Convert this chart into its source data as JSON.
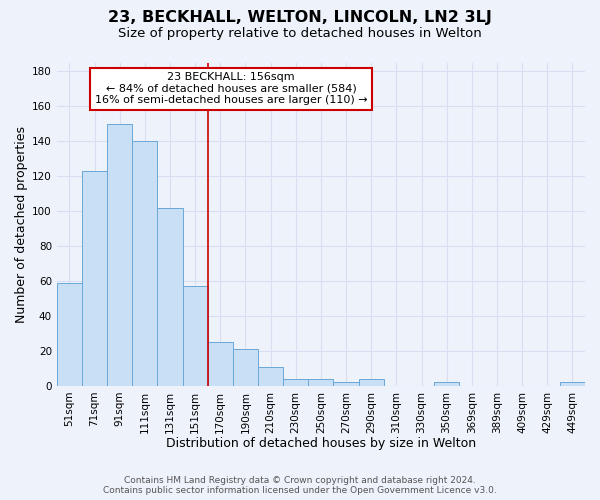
{
  "title": "23, BECKHALL, WELTON, LINCOLN, LN2 3LJ",
  "subtitle": "Size of property relative to detached houses in Welton",
  "xlabel": "Distribution of detached houses by size in Welton",
  "ylabel": "Number of detached properties",
  "footer_line1": "Contains HM Land Registry data © Crown copyright and database right 2024.",
  "footer_line2": "Contains public sector information licensed under the Open Government Licence v3.0.",
  "bar_labels": [
    "51sqm",
    "71sqm",
    "91sqm",
    "111sqm",
    "131sqm",
    "151sqm",
    "170sqm",
    "190sqm",
    "210sqm",
    "230sqm",
    "250sqm",
    "270sqm",
    "290sqm",
    "310sqm",
    "330sqm",
    "350sqm",
    "369sqm",
    "389sqm",
    "409sqm",
    "429sqm",
    "449sqm"
  ],
  "bar_values": [
    59,
    123,
    150,
    140,
    102,
    57,
    25,
    21,
    11,
    4,
    4,
    2,
    4,
    0,
    0,
    2,
    0,
    0,
    0,
    0,
    2
  ],
  "bar_color": "#c8dff5",
  "bar_edge_color": "#6aa8d8",
  "vline_x_index": 5.5,
  "vline_color": "#cc0000",
  "annotation_title": "23 BECKHALL: 156sqm",
  "annotation_line1": "← 84% of detached houses are smaller (584)",
  "annotation_line2": "16% of semi-detached houses are larger (110) →",
  "annotation_box_color": "#ffffff",
  "annotation_box_edge": "#cc0000",
  "ylim": [
    0,
    185
  ],
  "yticks": [
    0,
    20,
    40,
    60,
    80,
    100,
    120,
    140,
    160,
    180
  ],
  "background_color": "#eef2fb",
  "grid_color": "#d8dff0",
  "title_fontsize": 11.5,
  "subtitle_fontsize": 9.5,
  "axis_label_fontsize": 9,
  "tick_fontsize": 7.5,
  "footer_fontsize": 6.5
}
